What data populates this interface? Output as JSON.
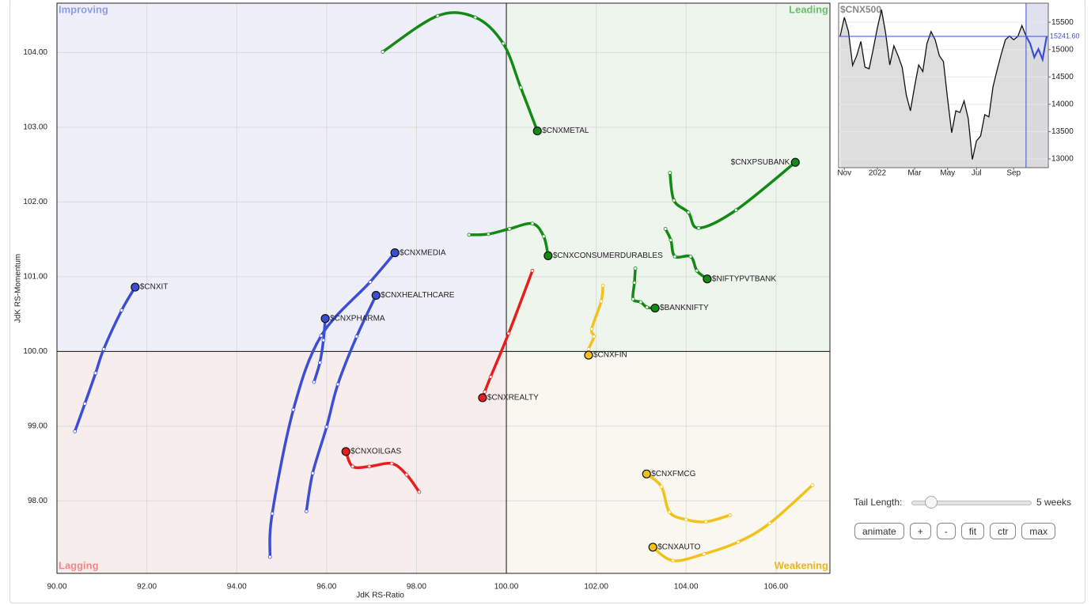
{
  "chart_data": [
    {
      "type": "rrg",
      "x_label": "JdK RS-Ratio",
      "y_label": "JdK RS-Momentum",
      "xlim": [
        90,
        107.2
      ],
      "ylim": [
        97.03,
        104.66
      ],
      "center": [
        100,
        100
      ],
      "grid": true,
      "xticks": [
        {
          "value": 90,
          "label": "90.00"
        },
        {
          "value": 92,
          "label": "92.00"
        },
        {
          "value": 94,
          "label": "94.00"
        },
        {
          "value": 96,
          "label": "96.00"
        },
        {
          "value": 98,
          "label": "98.00"
        },
        {
          "value": 100,
          "label": "100.00"
        },
        {
          "value": 102,
          "label": "102.00"
        },
        {
          "value": 104,
          "label": "104.00"
        },
        {
          "value": 106,
          "label": "106.00"
        }
      ],
      "yticks": [
        {
          "value": 98,
          "label": "98.00"
        },
        {
          "value": 99,
          "label": "99.00"
        },
        {
          "value": 100,
          "label": "100.00"
        },
        {
          "value": 101,
          "label": "101.00"
        },
        {
          "value": 102,
          "label": "102.00"
        },
        {
          "value": 103,
          "label": "103.00"
        },
        {
          "value": 104,
          "label": "104.00"
        }
      ],
      "quadrants": [
        {
          "label": "Improving",
          "corner": "top-left",
          "color": "#8e9ce6"
        },
        {
          "label": "Leading",
          "corner": "top-right",
          "color": "#6cbf6c"
        },
        {
          "label": "Lagging",
          "corner": "bottom-left",
          "color": "#f08888"
        },
        {
          "label": "Weakening",
          "corner": "bottom-right",
          "color": "#e8b820"
        }
      ],
      "series": [
        {
          "name": "$CNXMETAL",
          "color": "#138a13",
          "x": [
            97.25,
            98.47,
            99.31,
            99.93,
            100.32,
            100.69
          ],
          "y": [
            104.01,
            104.49,
            104.47,
            104.12,
            103.53,
            102.95
          ]
        },
        {
          "name": "$CNXPSUBANK",
          "color": "#138a13",
          "x": [
            103.64,
            103.73,
            104.05,
            104.28,
            105.11,
            106.43
          ],
          "y": [
            102.39,
            102.02,
            101.86,
            101.65,
            101.89,
            102.53
          ]
        },
        {
          "name": "$CNXCONSUMERDURABLES",
          "color": "#138a13",
          "x": [
            99.17,
            99.6,
            100.07,
            100.58,
            100.83,
            100.93
          ],
          "y": [
            101.56,
            101.57,
            101.64,
            101.71,
            101.54,
            101.28
          ]
        },
        {
          "name": "$NIFTYPVTBANK",
          "color": "#138a13",
          "x": [
            103.54,
            103.66,
            103.75,
            104.1,
            104.24,
            104.47
          ],
          "y": [
            101.64,
            101.49,
            101.27,
            101.27,
            101.08,
            100.97
          ]
        },
        {
          "name": "$BANKNIFTY",
          "color": "#138a13",
          "x": [
            102.87,
            102.85,
            102.82,
            102.99,
            103.13,
            103.31
          ],
          "y": [
            101.11,
            100.92,
            100.7,
            100.66,
            100.59,
            100.58
          ]
        },
        {
          "name": "$CNXFIN",
          "color": "#f2c21b",
          "x": [
            102.15,
            102.11,
            101.9,
            101.95,
            101.83,
            101.83
          ],
          "y": [
            100.88,
            100.67,
            100.3,
            100.2,
            100.03,
            99.95
          ]
        },
        {
          "name": "$CNXREALTY",
          "color": "#e61e1e",
          "x": [
            100.58,
            100.05,
            99.65,
            99.52,
            99.47
          ],
          "y": [
            101.08,
            100.24,
            99.66,
            99.46,
            99.38
          ]
        },
        {
          "name": "$CNXOILGAS",
          "color": "#e61e1e",
          "x": [
            98.06,
            97.78,
            97.45,
            96.95,
            96.58,
            96.43
          ],
          "y": [
            98.12,
            98.35,
            98.5,
            98.46,
            98.46,
            98.66
          ]
        },
        {
          "name": "$CNXFMCG",
          "color": "#f2c21b",
          "x": [
            104.98,
            104.44,
            104.0,
            103.63,
            103.45,
            103.12
          ],
          "y": [
            97.81,
            97.72,
            97.75,
            97.85,
            98.19,
            98.36
          ]
        },
        {
          "name": "$CNXAUTO",
          "color": "#f2c21b",
          "x": [
            106.81,
            105.86,
            105.16,
            104.4,
            103.71,
            103.26
          ],
          "y": [
            98.21,
            97.7,
            97.45,
            97.29,
            97.2,
            97.38
          ]
        },
        {
          "name": "$CNXIT",
          "color": "#3c4fd4",
          "x": [
            90.4,
            90.62,
            90.86,
            91.04,
            91.44,
            91.74
          ],
          "y": [
            98.93,
            99.3,
            99.71,
            100.03,
            100.55,
            100.86
          ]
        },
        {
          "name": "$CNXMEDIA",
          "color": "#3c4fd4",
          "x": [
            94.74,
            94.79,
            95.26,
            95.88,
            96.97,
            97.52
          ],
          "y": [
            97.25,
            97.83,
            99.22,
            100.21,
            100.93,
            101.32
          ]
        },
        {
          "name": "$CNXHEALTHCARE",
          "color": "#3c4fd4",
          "x": [
            95.55,
            95.69,
            96.0,
            96.25,
            96.67,
            97.1
          ],
          "y": [
            97.86,
            98.37,
            98.99,
            99.56,
            100.2,
            100.75
          ]
        },
        {
          "name": "$CNXPHARMA",
          "color": "#3c4fd4",
          "x": [
            95.72,
            95.85,
            95.93,
            95.97
          ],
          "y": [
            99.59,
            99.85,
            100.15,
            100.44
          ]
        }
      ]
    },
    {
      "type": "area",
      "title": "$CNX500",
      "color": "#111111",
      "fill": "#d9d9d9",
      "highlight_color": "#3c4fd4",
      "categories": [
        null,
        "Nov",
        null,
        null,
        null,
        null,
        null,
        null,
        null,
        "2022",
        null,
        null,
        null,
        null,
        null,
        null,
        null,
        null,
        "Mar",
        null,
        null,
        null,
        null,
        null,
        null,
        null,
        "May",
        null,
        null,
        null,
        null,
        null,
        null,
        "Jul",
        null,
        null,
        null,
        null,
        null,
        null,
        null,
        null,
        "Sep",
        null,
        null,
        null,
        null,
        null,
        null,
        null,
        null
      ],
      "values": [
        15250,
        15590,
        15330,
        14710,
        14890,
        15150,
        14680,
        14650,
        15010,
        15400,
        15730,
        15300,
        14720,
        15070,
        14890,
        14680,
        14170,
        13880,
        14320,
        14720,
        14600,
        15110,
        15330,
        15180,
        14890,
        14780,
        14100,
        13480,
        13880,
        13850,
        14060,
        13740,
        12990,
        13330,
        13420,
        13810,
        13770,
        14320,
        14630,
        14920,
        15180,
        15250,
        15180,
        15240,
        15440,
        15250,
        15110,
        14860,
        15010,
        14820,
        15241.6
      ],
      "ylim": [
        12840,
        15850
      ],
      "yticks": [
        13000,
        13500,
        14000,
        14500,
        15000,
        15500
      ],
      "marker": {
        "value": 15241.6,
        "label": "15241.60"
      }
    }
  ],
  "controls": {
    "tail_length_label": "Tail Length:",
    "tail_length": {
      "value": 5,
      "label": "5 weeks"
    },
    "slider_range": [
      1,
      26
    ],
    "buttons": [
      "animate",
      "+",
      "-",
      "fit",
      "ctr",
      "max"
    ]
  }
}
